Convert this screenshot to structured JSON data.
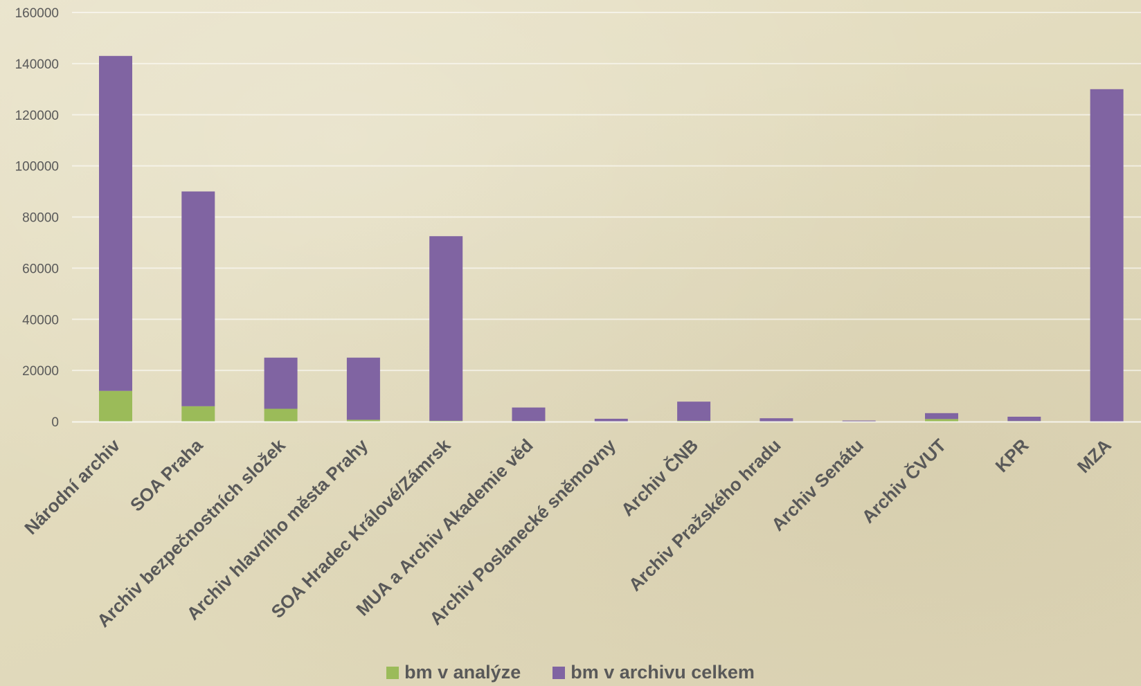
{
  "chart_data": {
    "type": "bar",
    "stacked": true,
    "title": "",
    "xlabel": "",
    "ylabel": "",
    "ylim": [
      0,
      160000
    ],
    "y_ticks": [
      0,
      20000,
      40000,
      60000,
      80000,
      100000,
      120000,
      140000,
      160000
    ],
    "grid": true,
    "legend_position": "bottom",
    "categories": [
      "Národní archiv",
      "SOA Praha",
      "Archiv bezpečnostních složek",
      "Archiv hlavního města Prahy",
      "SOA Hradec Králové/Zámrsk",
      "MUA a Archiv Akademie věd",
      "Archiv Poslanecké sněmovny",
      "Archiv ČNB",
      "Archiv Pražského hradu",
      "Archiv Senátu",
      "Archiv ČVUT",
      "KPR",
      "MZA"
    ],
    "series": [
      {
        "name": "bm v analýze",
        "color": "#9bbb59",
        "values": [
          12000,
          6000,
          5000,
          700,
          300,
          200,
          100,
          300,
          100,
          50,
          1000,
          200,
          0
        ]
      },
      {
        "name": "bm v archivu celkem",
        "color": "#8064a2",
        "values": [
          131000,
          84000,
          20000,
          24300,
          72200,
          5300,
          1000,
          7500,
          1200,
          350,
          2300,
          1700,
          130000
        ]
      }
    ]
  }
}
